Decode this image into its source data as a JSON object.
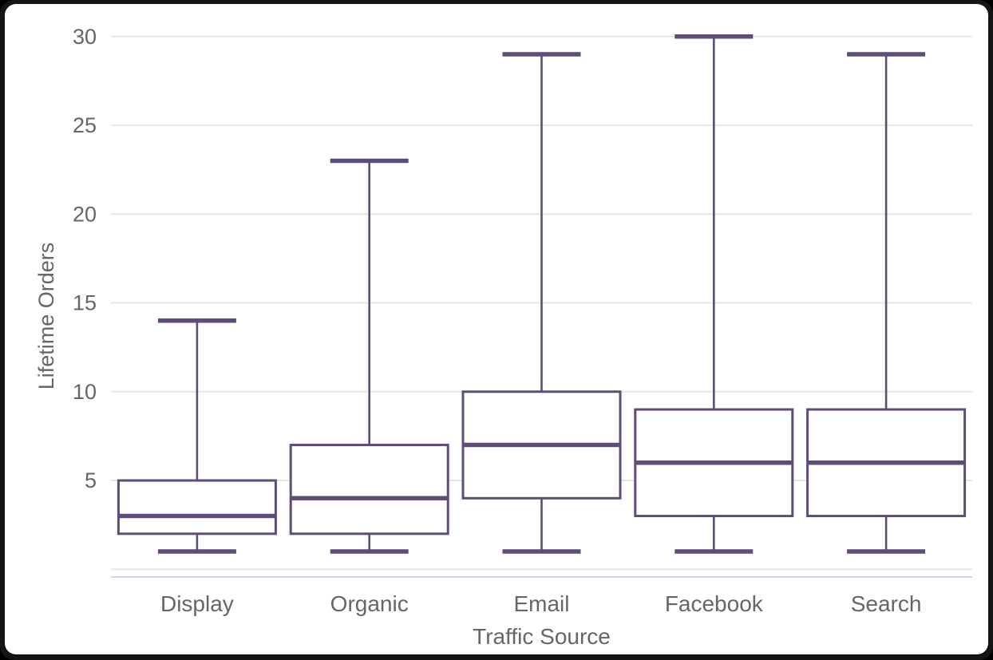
{
  "chart_data": {
    "type": "boxplot",
    "title": "",
    "xlabel": "Traffic Source",
    "ylabel": "Lifetime Orders",
    "categories": [
      "Display",
      "Organic",
      "Email",
      "Facebook",
      "Search"
    ],
    "series": [
      {
        "name": "Lifetime Orders",
        "points": [
          {
            "category": "Display",
            "min": 1,
            "q1": 2,
            "median": 3,
            "q3": 5,
            "max": 14
          },
          {
            "category": "Organic",
            "min": 1,
            "q1": 2,
            "median": 4,
            "q3": 7,
            "max": 23
          },
          {
            "category": "Email",
            "min": 1,
            "q1": 4,
            "median": 7,
            "q3": 10,
            "max": 29
          },
          {
            "category": "Facebook",
            "min": 1,
            "q1": 3,
            "median": 6,
            "q3": 9,
            "max": 30
          },
          {
            "category": "Search",
            "min": 1,
            "q1": 3,
            "median": 6,
            "q3": 9,
            "max": 29
          }
        ]
      }
    ],
    "yticks": [
      5,
      10,
      15,
      20,
      25,
      30
    ],
    "ylim": [
      0,
      30
    ],
    "grid": true,
    "legend": false,
    "colors": {
      "box_stroke": "#5f4b7c",
      "box_fill": "#ffffff",
      "gridline": "#e6e6e6",
      "axis_line": "#ccd6eb",
      "label_text": "#666666"
    }
  }
}
